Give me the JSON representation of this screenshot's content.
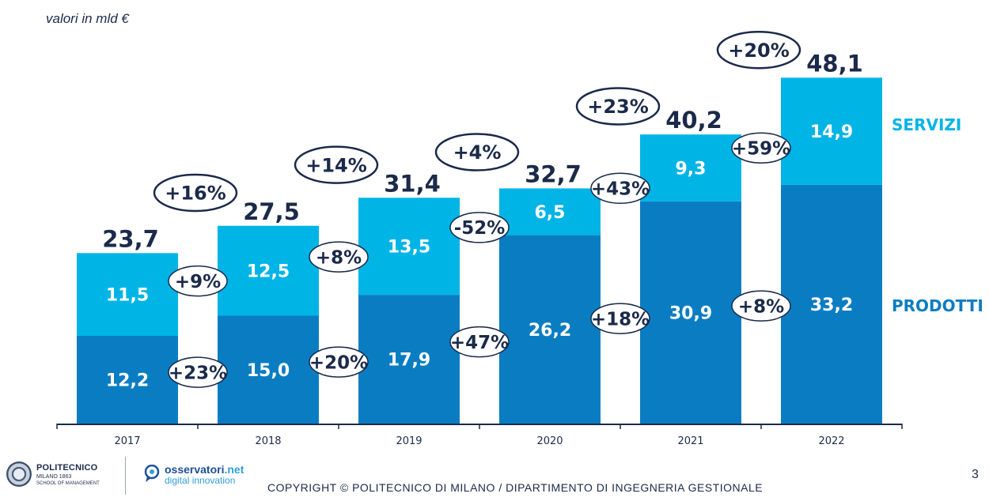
{
  "page": {
    "unit_note": "valori in mld €",
    "copyright": "COPYRIGHT © POLITECNICO DI MILANO / DIPARTIMENTO DI INGEGNERIA GESTIONALE",
    "page_number": "3",
    "logos": {
      "polimi_name": "POLITECNICO",
      "polimi_sub1": "MILANO 1863",
      "polimi_sub2": "SCHOOL OF MANAGEMENT",
      "osserv_name_main": "osservatori",
      "osserv_name_ext": ".net",
      "osserv_sub": "digital innovation"
    }
  },
  "chart_data": {
    "type": "bar",
    "stacked": true,
    "categories": [
      "2017",
      "2018",
      "2019",
      "2020",
      "2021",
      "2022"
    ],
    "series": [
      {
        "name": "PRODOTTI",
        "values": [
          "12,2",
          "15,0",
          "17,9",
          "26,2",
          "30,9",
          "33,2"
        ],
        "color": "#0a7dc2"
      },
      {
        "name": "SERVIZI",
        "values": [
          "11,5",
          "12,5",
          "13,5",
          "6,5",
          "9,3",
          "14,9"
        ],
        "color": "#00b4e6"
      }
    ],
    "totals": [
      "23,7",
      "27,5",
      "31,4",
      "32,7",
      "40,2",
      "48,1"
    ],
    "growth_total": [
      "+16%",
      "+14%",
      "+4%",
      "+23%",
      "+20%"
    ],
    "growth_servizi": [
      "+9%",
      "+8%",
      "-52%",
      "+43%",
      "+59%"
    ],
    "growth_prodotti": [
      "+23%",
      "+20%",
      "+47%",
      "+18%",
      "+8%"
    ],
    "legend_position": "right",
    "colors": {
      "text_dark": "#1b2a4a",
      "prodotti": "#0a7dc2",
      "servizi": "#00b4e6",
      "legend_prodotti": "#0a7dc2",
      "legend_servizi": "#00b4e6"
    }
  }
}
